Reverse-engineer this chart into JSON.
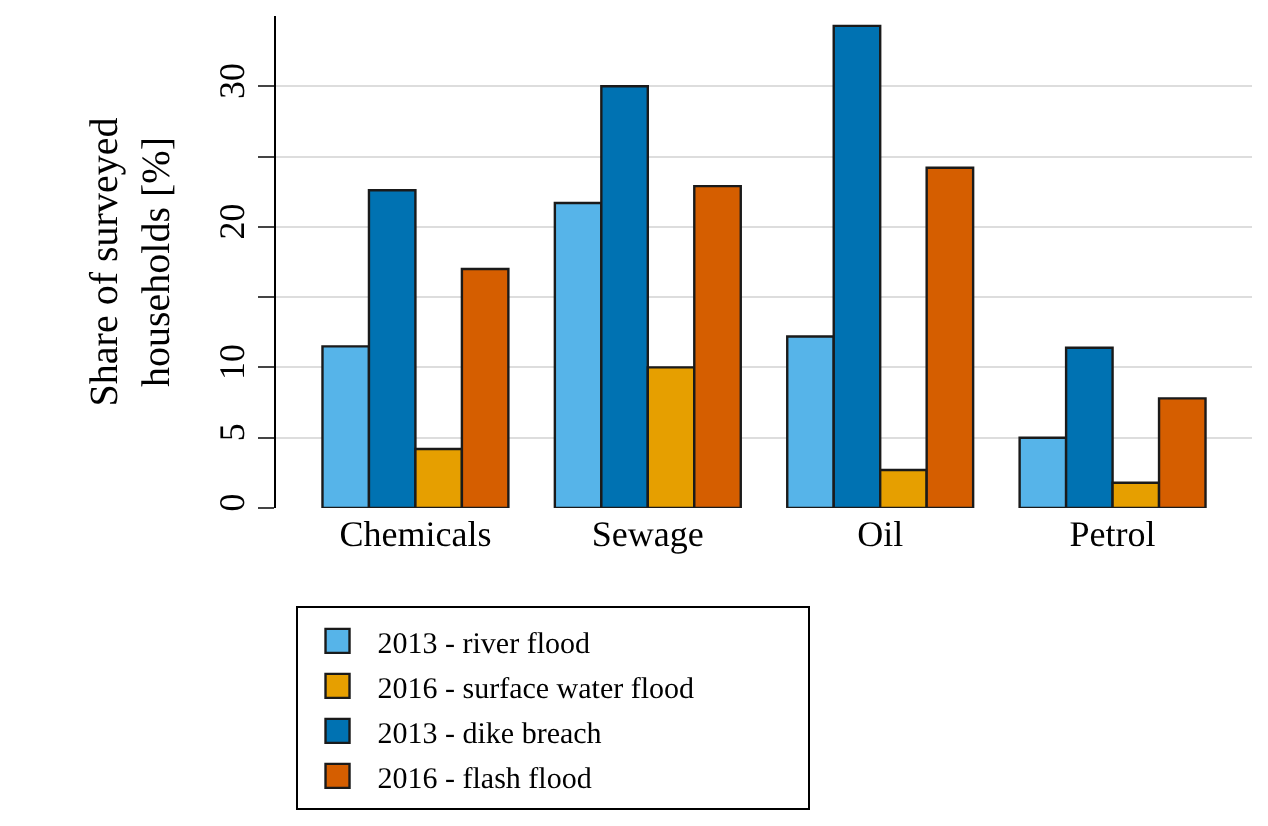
{
  "chart_data": {
    "type": "bar",
    "ylabel": "Share of surveyed\nhouseholds [%]",
    "categories": [
      "Chemicals",
      "Sewage",
      "Oil",
      "Petrol"
    ],
    "series": [
      {
        "name": "2013 - river flood",
        "color": "#56b4e9",
        "values": [
          11.5,
          21.7,
          12.2,
          5.0
        ]
      },
      {
        "name": "2013 - dike breach",
        "color": "#0072b2",
        "values": [
          22.6,
          30.0,
          34.3,
          11.4
        ]
      },
      {
        "name": "2016 - surface water flood",
        "color": "#e69f00",
        "values": [
          4.2,
          10.0,
          2.7,
          1.8
        ]
      },
      {
        "name": "2016 - flash flood",
        "color": "#d55e00",
        "values": [
          17.0,
          22.9,
          24.2,
          7.8
        ]
      }
    ],
    "ylim": [
      0,
      35
    ],
    "yticks": [
      0,
      5,
      10,
      {
        "value": 15,
        "label": null
      },
      20,
      {
        "value": 25,
        "label": null
      },
      30
    ],
    "grid": "y",
    "legend": "bottom"
  }
}
